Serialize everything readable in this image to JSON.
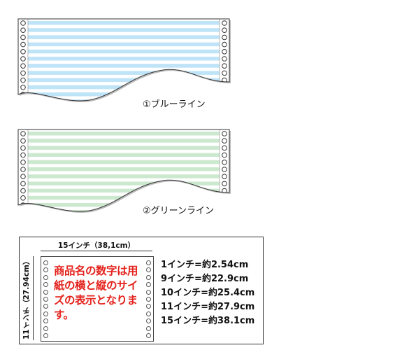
{
  "sheets": [
    {
      "caption": "①ブルーライン",
      "stripe_color": "#bfe3f7",
      "name": "blue"
    },
    {
      "caption": "②グリーンライン",
      "stripe_color": "#cce9cf",
      "name": "green"
    }
  ],
  "legend": {
    "width_label": "15インチ（38,1cm）",
    "height_label": "11インチ（27.94cm）",
    "note": "商品名の数字は用紙の横と縦のサイズの表示となります。",
    "conversions": [
      "1インチ=約2.54cm",
      "9インチ=約22.9cm",
      "10インチ=約25.4cm",
      "11インチ=約27.9cm",
      "15インチ=約38.1cm"
    ]
  }
}
